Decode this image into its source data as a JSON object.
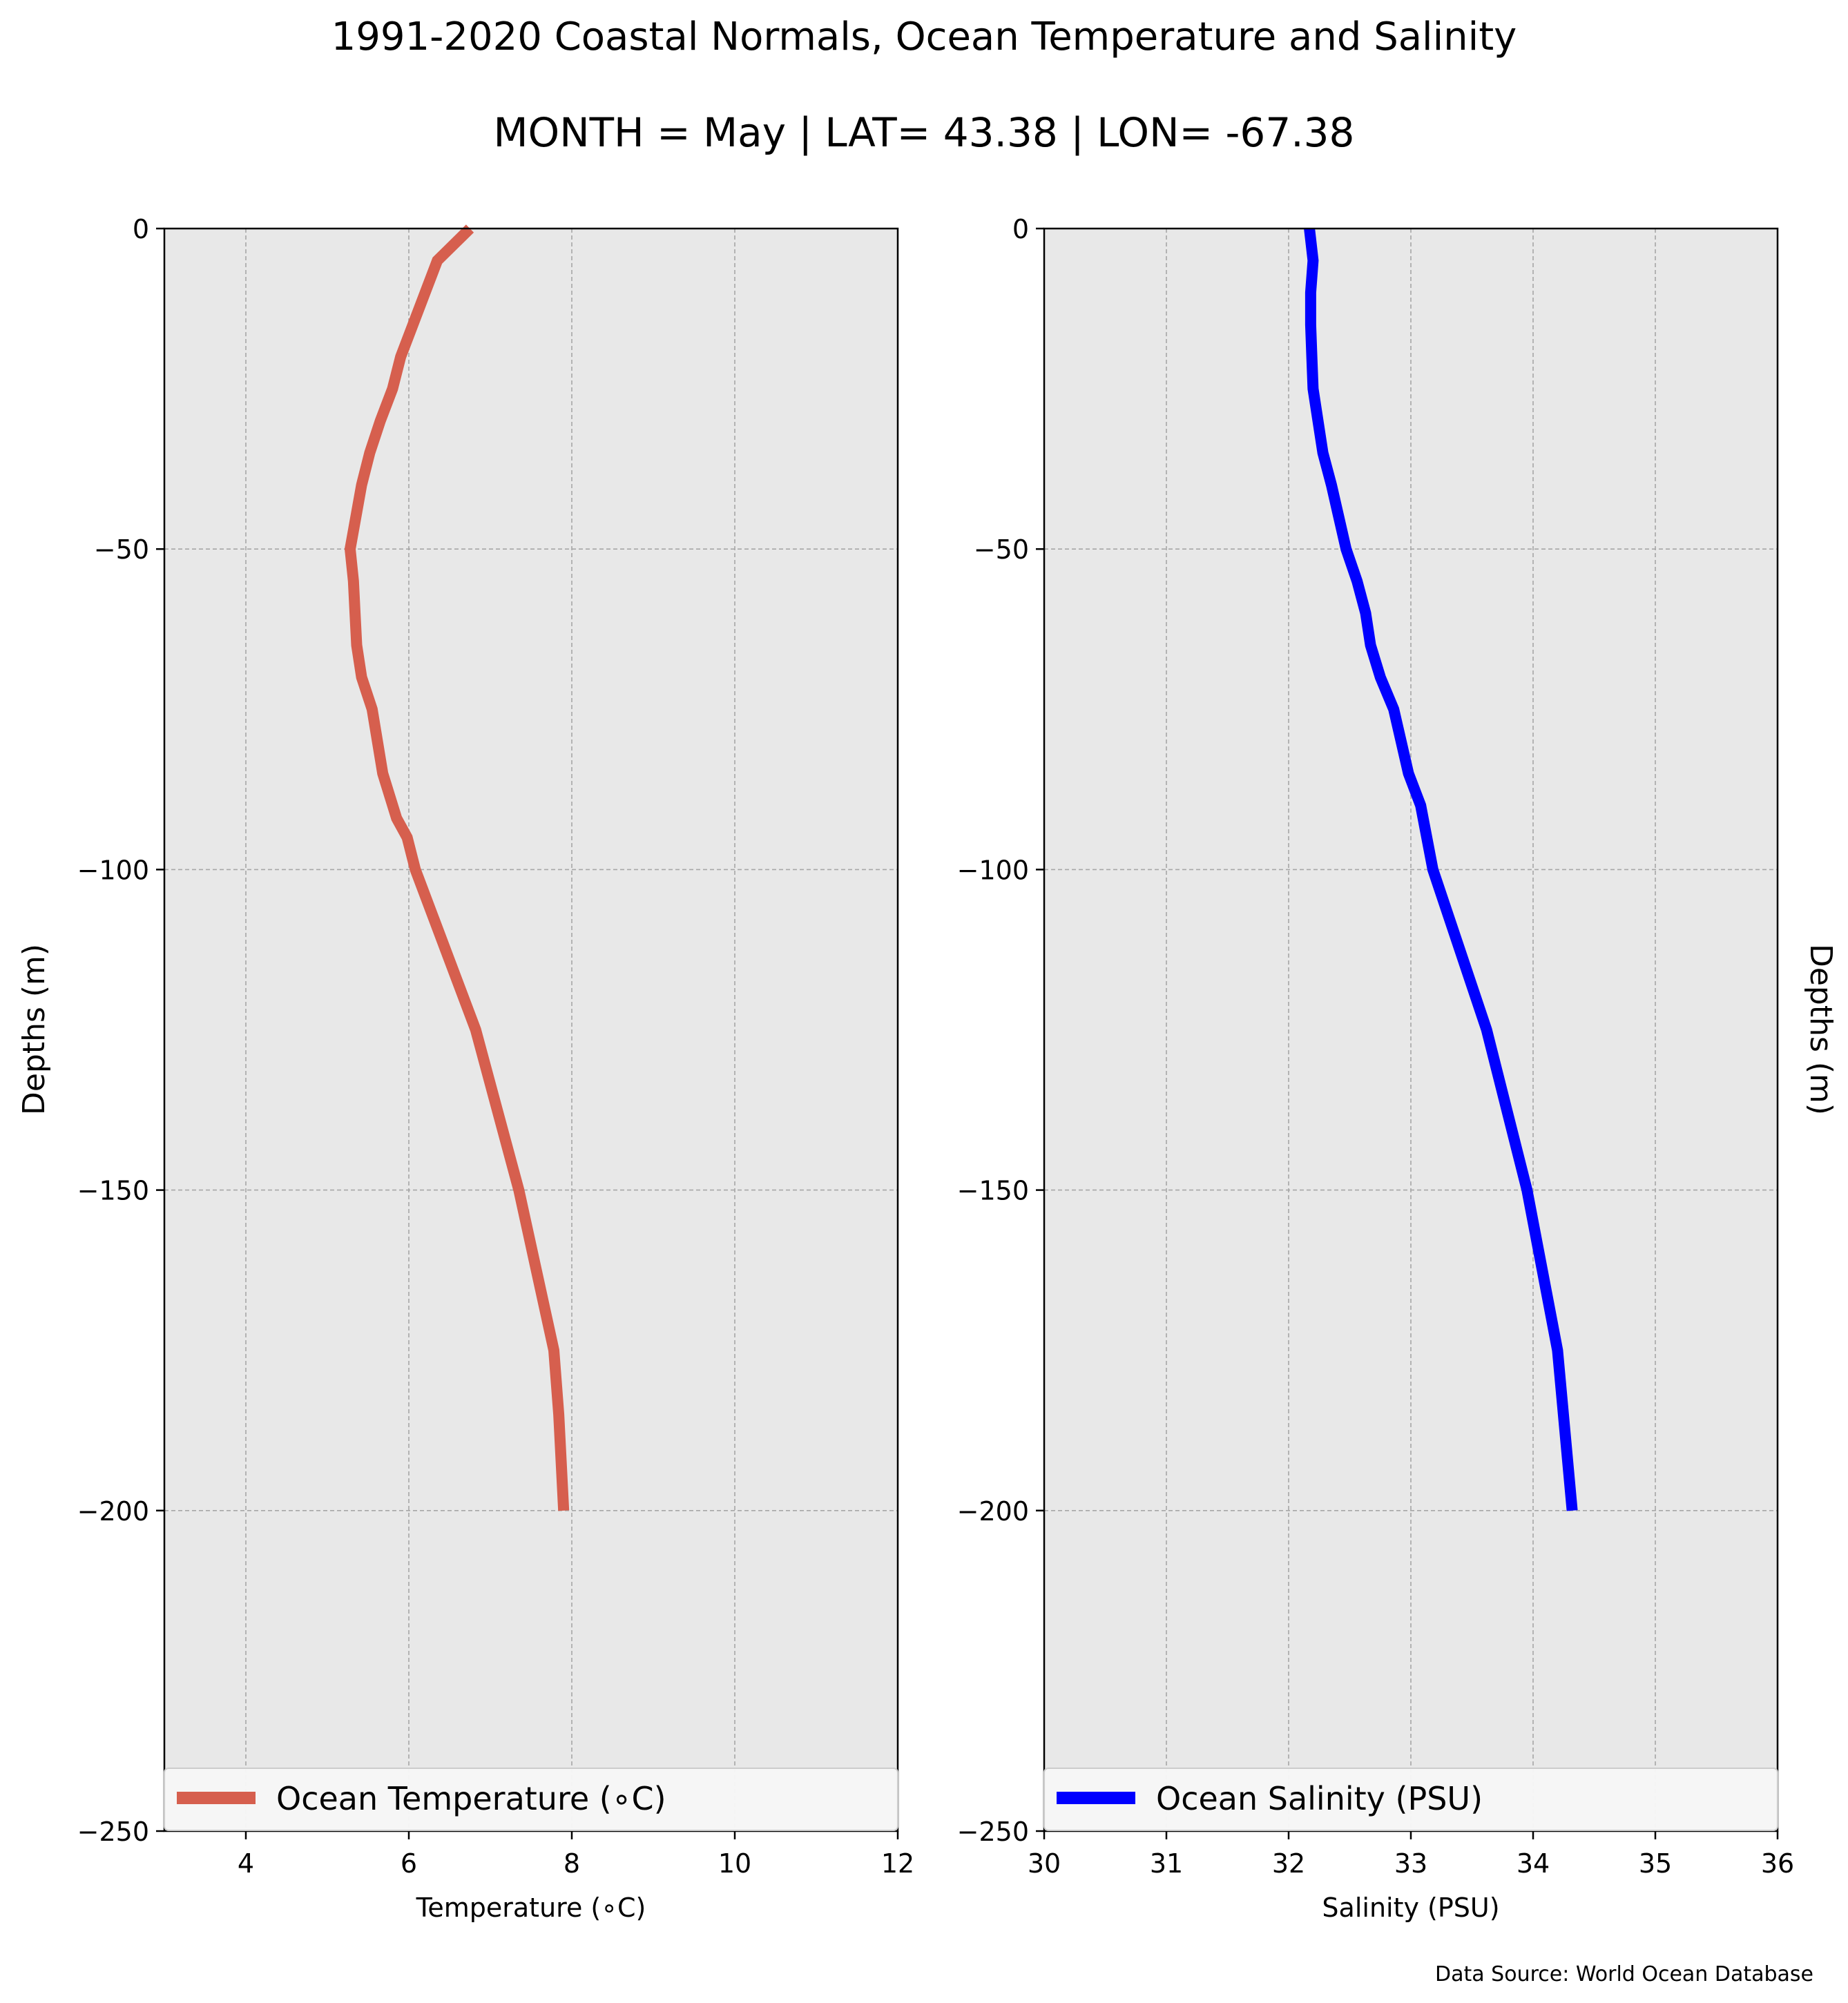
{
  "title": "1991-2020 Coastal Normals, Ocean Temperature and Salinity",
  "subtitle": "MONTH = May | LAT= 43.38 | LON= -67.38",
  "source_note": "Data Source: World Ocean Database",
  "chart_data": [
    {
      "type": "line",
      "xlabel": "Temperature (∘C)",
      "ylabel": "Depths (m)",
      "xlim": [
        3,
        12
      ],
      "ylim": [
        -250,
        0
      ],
      "xticks": [
        "4",
        "6",
        "8",
        "10",
        "12"
      ],
      "yticks": [
        "0",
        "−50",
        "−100",
        "−150",
        "−200",
        "−250"
      ],
      "grid": true,
      "legend_position": "lower",
      "colors": {
        "line": "#d65f4e",
        "background": "#e8e8e8"
      },
      "series": [
        {
          "name": "Ocean Temperature (∘C)",
          "x": [
            6.75,
            6.35,
            6.2,
            6.05,
            5.9,
            5.8,
            5.65,
            5.52,
            5.42,
            5.35,
            5.28,
            5.32,
            5.34,
            5.36,
            5.42,
            5.55,
            5.68,
            5.85,
            5.98,
            6.08,
            6.82,
            7.35,
            7.78,
            7.84,
            7.9
          ],
          "y": [
            0,
            -5,
            -10,
            -15,
            -20,
            -25,
            -30,
            -35,
            -40,
            -45,
            -50,
            -55,
            -60,
            -65,
            -70,
            -75,
            -85,
            -92,
            -95,
            -100,
            -125,
            -150,
            -175,
            -185,
            -200
          ]
        }
      ]
    },
    {
      "type": "line",
      "xlabel": "Salinity (PSU)",
      "ylabel": "Depths (m)",
      "xlim": [
        30,
        36
      ],
      "ylim": [
        -250,
        0
      ],
      "xticks": [
        "30",
        "31",
        "32",
        "33",
        "34",
        "35",
        "36"
      ],
      "yticks": [
        "0",
        "−50",
        "−100",
        "−150",
        "−200",
        "−250"
      ],
      "grid": true,
      "legend_position": "lower",
      "colors": {
        "line": "#0000ff",
        "background": "#e8e8e8"
      },
      "series": [
        {
          "name": "Ocean Salinity (PSU)",
          "x": [
            32.17,
            32.2,
            32.18,
            32.18,
            32.19,
            32.2,
            32.24,
            32.28,
            32.35,
            32.41,
            32.47,
            32.56,
            32.63,
            32.67,
            32.75,
            32.86,
            32.98,
            33.08,
            33.18,
            33.62,
            33.95,
            34.2,
            34.32
          ],
          "y": [
            0,
            -5,
            -10,
            -15,
            -20,
            -25,
            -30,
            -35,
            -40,
            -45,
            -50,
            -55,
            -60,
            -65,
            -70,
            -75,
            -85,
            -90,
            -100,
            -125,
            -150,
            -175,
            -200
          ]
        }
      ]
    }
  ]
}
